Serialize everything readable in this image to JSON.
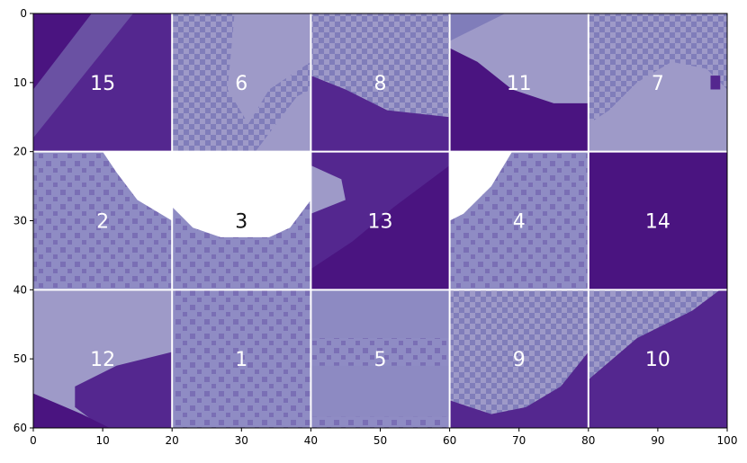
{
  "figure": {
    "type": "tile-puzzle",
    "grid": {
      "rows": 3,
      "cols": 5
    },
    "x_axis": {
      "range": [
        0,
        100
      ],
      "ticks": [
        "0",
        "10",
        "20",
        "30",
        "40",
        "50",
        "60",
        "70",
        "80",
        "90",
        "100"
      ]
    },
    "y_axis": {
      "range": [
        0,
        60
      ],
      "ticks": [
        "0",
        "10",
        "20",
        "30",
        "40",
        "50",
        "60"
      ]
    },
    "colors": {
      "dark": "#4a1480",
      "dark2": "#54278f",
      "mid": "#807dba",
      "mid_dark": "#6a51a3",
      "light": "#9e9ac8",
      "lighter": "#bcbddc",
      "white": "#ffffff",
      "grid_line": "#ffffff",
      "label_on_dark": "#ffffff",
      "label_on_light": "#111111"
    },
    "tiles": [
      {
        "label": "15",
        "style": "dark-top-right-light-corner"
      },
      {
        "label": "6",
        "style": "checker-light"
      },
      {
        "label": "8",
        "style": "checker-top-dark-bottom"
      },
      {
        "label": "11",
        "style": "light-top-dark-bottom"
      },
      {
        "label": "7",
        "style": "mid-top-light-bottom"
      },
      {
        "label": "2",
        "style": "light-checker-white-corner"
      },
      {
        "label": "3",
        "style": "white-top-checker-bottom"
      },
      {
        "label": "13",
        "style": "dark-with-light-wedge"
      },
      {
        "label": "4",
        "style": "checker-white-corner"
      },
      {
        "label": "14",
        "style": "dark"
      },
      {
        "label": "12",
        "style": "light-top-dark-bottom-left"
      },
      {
        "label": "1",
        "style": "light-checker"
      },
      {
        "label": "5",
        "style": "light-checker-sparse"
      },
      {
        "label": "9",
        "style": "checker-dark-bottom"
      },
      {
        "label": "10",
        "style": "light-top-dark-diagonal"
      }
    ]
  }
}
